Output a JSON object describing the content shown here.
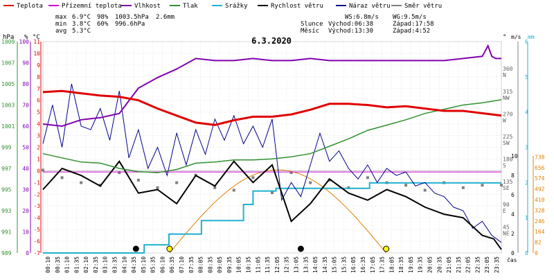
{
  "chart_data": {
    "type": "line",
    "title": "6.3.2020",
    "legend": [
      {
        "label": "Teplota",
        "color": "#e00000"
      },
      {
        "label": "Přízemní teplota",
        "color": "#cc00cc"
      },
      {
        "label": "Vlhkost",
        "color": "#8000b0"
      },
      {
        "label": "Tlak",
        "color": "#309030"
      },
      {
        "label": "Srážky",
        "color": "#20b0d0"
      },
      {
        "label": "Rychlost větru",
        "color": "#000000"
      },
      {
        "label": "Náraz větru",
        "color": "#00008b"
      },
      {
        "label": "Směr větru",
        "color": "#808080"
      }
    ],
    "stats": {
      "max_label": "max",
      "max_temp": "6.9°C",
      "max_hum": "98%",
      "max_press": "1003.5hPa",
      "rain": "2.6mm",
      "min_label": "min",
      "min_temp": "3.8°C",
      "min_hum": "60%",
      "min_press": "996.6hPa",
      "avg_label": "avg",
      "avg_temp": "5.3°C"
    },
    "info": {
      "ws": "WS:6.8m/s",
      "wg": "WG:9.5m/s",
      "sun_label": "Slunce",
      "sun_rise": "Východ:06:38",
      "sun_set": "Západ:17:58",
      "moon_label": "Měsíc",
      "moon_rise": "Východ:13:30",
      "moon_set": "Západ:4:52"
    },
    "axes": {
      "hpa_unit": "hPa",
      "pct_unit": "%",
      "temp_unit": "°C",
      "deg_unit": "°",
      "ms_unit": "m/s",
      "mm_unit": "mm",
      "x_unit": "čas",
      "hpa_ticks": [
        "989",
        "991",
        "993",
        "995",
        "997",
        "999",
        "1001",
        "1003",
        "1005",
        "1007",
        "1009"
      ],
      "pct_ticks": [
        "0",
        "10",
        "20",
        "30",
        "40",
        "50",
        "60",
        "70",
        "80",
        "90",
        "100"
      ],
      "temp_ticks": [
        "-7",
        "-6",
        "-5",
        "-4",
        "-3",
        "-2",
        "-1",
        "0",
        "1",
        "2",
        "3",
        "4",
        "5",
        "6",
        "7",
        "8",
        "9",
        "10",
        "11"
      ],
      "deg_ticks": [
        {
          "v": "45",
          "d": "NE"
        },
        {
          "v": "90",
          "d": "E"
        },
        {
          "v": "135",
          "d": "SE"
        },
        {
          "v": "180",
          "d": "S"
        },
        {
          "v": "225",
          "d": "SW"
        },
        {
          "v": "270",
          "d": "W"
        },
        {
          "v": "315",
          "d": "NW"
        },
        {
          "v": "360",
          "d": "N"
        }
      ],
      "ms_ticks": [
        "0",
        "1",
        "2",
        "3",
        "4",
        "5",
        "6"
      ],
      "ms_ticks_low": [
        "0",
        "2",
        "4",
        "6",
        "8",
        "10"
      ],
      "wm_ticks": [
        "0",
        "82",
        "164",
        "246",
        "328",
        "410",
        "492",
        "574",
        "656",
        "738"
      ],
      "x_ticks": [
        "00:10",
        "00:35",
        "01:10",
        "01:35",
        "02:10",
        "02:35",
        "03:10",
        "03:35",
        "04:10",
        "04:35",
        "05:10",
        "05:35",
        "06:10",
        "06:35",
        "07:10",
        "07:35",
        "08:05",
        "08:35",
        "09:05",
        "09:35",
        "10:05",
        "10:35",
        "11:05",
        "11:35",
        "12:05",
        "12:35",
        "13:05",
        "13:35",
        "14:05",
        "14:35",
        "15:05",
        "15:35",
        "16:05",
        "16:35",
        "17:05",
        "17:35",
        "18:05",
        "18:35",
        "19:05",
        "19:35",
        "20:05",
        "20:35",
        "21:05",
        "21:35",
        "22:05",
        "22:35",
        "23:05",
        "23:35"
      ]
    },
    "x_range": [
      0,
      24
    ],
    "series": [
      {
        "name": "Teplota",
        "color": "#e00000",
        "x": [
          0,
          1,
          2,
          3,
          4,
          5,
          6,
          7,
          8,
          9,
          10,
          11,
          12,
          13,
          14,
          15,
          16,
          17,
          18,
          19,
          20,
          21,
          22,
          23,
          24
        ],
        "y": [
          6.7,
          6.8,
          6.6,
          6.4,
          6.3,
          6.0,
          5.3,
          4.7,
          4.1,
          3.9,
          4.3,
          4.6,
          4.6,
          4.8,
          5.2,
          5.7,
          5.7,
          5.6,
          5.4,
          5.5,
          5.3,
          5.1,
          5.1,
          4.9,
          4.7
        ]
      },
      {
        "name": "Přízemní teplota",
        "color": "#cc00cc",
        "x": [
          0,
          24
        ],
        "y": [
          -0.1,
          -0.1
        ]
      },
      {
        "name": "Vlhkost",
        "color": "#8000b0",
        "x": [
          0,
          1,
          2,
          3,
          4,
          5,
          6,
          7,
          8,
          9,
          10,
          11,
          12,
          13,
          14,
          15,
          16,
          17,
          18,
          19,
          20,
          21,
          22,
          23,
          23.3,
          23.5,
          23.7,
          24
        ],
        "y": [
          61,
          60,
          63,
          64,
          66,
          78,
          83,
          87,
          92,
          91,
          91,
          92,
          91,
          91,
          92,
          91,
          91,
          91,
          91,
          91,
          91,
          91,
          92,
          93,
          98,
          93,
          92,
          92
        ]
      },
      {
        "name": "Tlak",
        "color": "#309030",
        "x": [
          0,
          1,
          2,
          3,
          4,
          5,
          6,
          7,
          8,
          9,
          10,
          11,
          12,
          13,
          14,
          15,
          16,
          17,
          18,
          19,
          20,
          21,
          22,
          23,
          24
        ],
        "y": [
          998.4,
          998.0,
          997.6,
          997.5,
          997.0,
          996.7,
          996.6,
          996.9,
          997.5,
          997.6,
          997.8,
          997.8,
          997.9,
          998.1,
          998.4,
          999.1,
          999.8,
          1000.6,
          1001.1,
          1001.6,
          1002.2,
          1002.6,
          1003.0,
          1003.2,
          1003.5
        ]
      },
      {
        "name": "Srážky",
        "color": "#20b0d0",
        "x": [
          0,
          5.3,
          5.3,
          6.6,
          6.6,
          8.3,
          8.3,
          10.5,
          10.5,
          11.0,
          11.0,
          12.2,
          12.2,
          17.1,
          17.1,
          24
        ],
        "y": [
          0,
          0,
          0.3,
          0.3,
          0.7,
          0.7,
          1.2,
          1.2,
          1.8,
          1.8,
          2.3,
          2.3,
          2.4,
          2.4,
          2.6,
          2.6
        ]
      },
      {
        "name": "Rychlost větru",
        "color": "#000000",
        "x": [
          0,
          1,
          2,
          3,
          4,
          5,
          6,
          7,
          8,
          9,
          10,
          11,
          12,
          13,
          14,
          15,
          16,
          17,
          18,
          19,
          20,
          21,
          22,
          23,
          23.6,
          24
        ],
        "y": [
          1.8,
          2.4,
          2.2,
          1.9,
          2.6,
          1.7,
          1.8,
          1.4,
          2.2,
          1.9,
          2.6,
          2.0,
          2.5,
          0.9,
          1.4,
          2.1,
          1.7,
          1.5,
          1.8,
          1.6,
          1.3,
          1.1,
          1.0,
          0.5,
          0.4,
          0.1
        ]
      },
      {
        "name": "Náraz větru",
        "color": "#00008b",
        "x": [
          0,
          0.5,
          1,
          1.5,
          2,
          2.5,
          3,
          3.5,
          4,
          4.5,
          5,
          5.5,
          6,
          6.5,
          7,
          7.5,
          8,
          8.5,
          9,
          9.5,
          10,
          10.5,
          11,
          11.5,
          12,
          12.5,
          13,
          13.5,
          14,
          14.5,
          15,
          15.5,
          16,
          16.5,
          17,
          17.5,
          18,
          18.5,
          19,
          19.5,
          20,
          20.5,
          21,
          21.5,
          22,
          22.5,
          23,
          23.5,
          24
        ],
        "y": [
          3.1,
          4.2,
          3.0,
          4.8,
          3.6,
          3.5,
          4.1,
          3.2,
          4.6,
          2.7,
          3.5,
          2.4,
          3.0,
          2.2,
          3.4,
          2.5,
          3.5,
          2.8,
          3.8,
          3.2,
          3.9,
          3.1,
          3.6,
          3.0,
          3.8,
          1.5,
          2.0,
          1.6,
          2.5,
          3.4,
          2.6,
          2.9,
          2.4,
          2.1,
          2.5,
          2.0,
          2.4,
          2.2,
          2.3,
          1.9,
          2.0,
          1.7,
          1.6,
          1.3,
          1.2,
          0.7,
          0.9,
          0.5,
          0.3
        ]
      },
      {
        "name": "Směr větru",
        "color": "#808080",
        "x": [
          0,
          1,
          2,
          3,
          4,
          5,
          6,
          7,
          8,
          9,
          10,
          11,
          12,
          13,
          14,
          15,
          16,
          17,
          18,
          19,
          20,
          21,
          22,
          23,
          24
        ],
        "y": [
          165,
          150,
          140,
          135,
          160,
          145,
          130,
          140,
          155,
          130,
          125,
          150,
          120,
          160,
          140,
          145,
          130,
          150,
          140,
          135,
          125,
          140,
          130,
          135,
          135
        ]
      }
    ],
    "sun_curve": {
      "name": "Slunce",
      "color": "#e08000",
      "rise": 6.63,
      "set": 17.97
    },
    "markers": [
      {
        "name": "moon-set",
        "x": 4.87,
        "color": "#000000"
      },
      {
        "name": "moon-rise",
        "x": 13.5,
        "color": "#000000"
      },
      {
        "name": "sun-rise",
        "x": 6.63,
        "color": "#ffff00"
      },
      {
        "name": "sun-set",
        "x": 17.97,
        "color": "#ffff00"
      }
    ]
  }
}
